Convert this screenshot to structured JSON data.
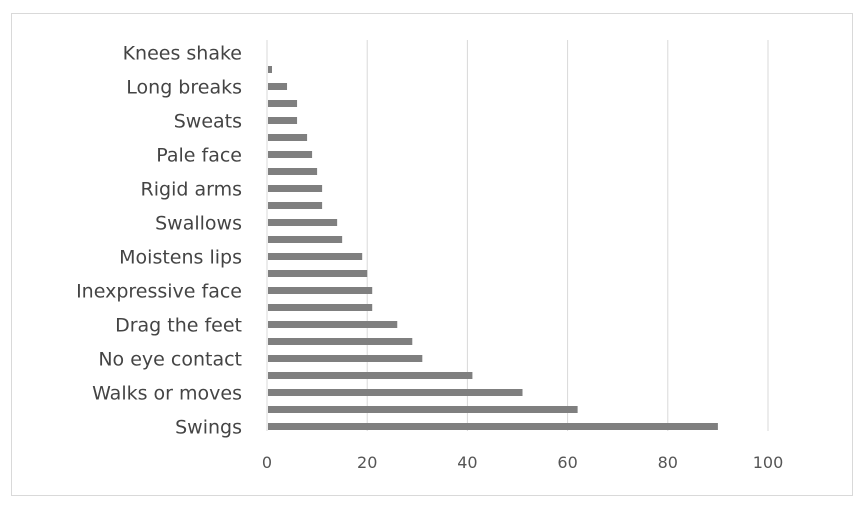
{
  "chart_data": {
    "type": "bar",
    "orientation": "horizontal",
    "categories": [
      "Swings",
      "",
      "Walks or moves",
      "",
      "No eye contact",
      "",
      "Drag the feet",
      "",
      "Inexpressive face",
      "",
      "Moistens lips",
      "",
      "Swallows",
      "",
      "Rigid arms",
      "",
      "Pale face",
      "",
      "Sweats",
      "",
      "Long breaks",
      "",
      "Knees shake"
    ],
    "values": [
      90,
      62,
      51,
      41,
      31,
      29,
      26,
      21,
      21,
      20,
      19,
      15,
      14,
      11,
      11,
      10,
      9,
      8,
      6,
      6,
      4,
      1,
      0
    ],
    "xlim": [
      0,
      100
    ],
    "xticks": [
      "0",
      "20",
      "40",
      "60",
      "80",
      "100"
    ],
    "grid": "vertical",
    "bar_color": "#7f7f7f",
    "grid_color": "#d9d9d9"
  }
}
